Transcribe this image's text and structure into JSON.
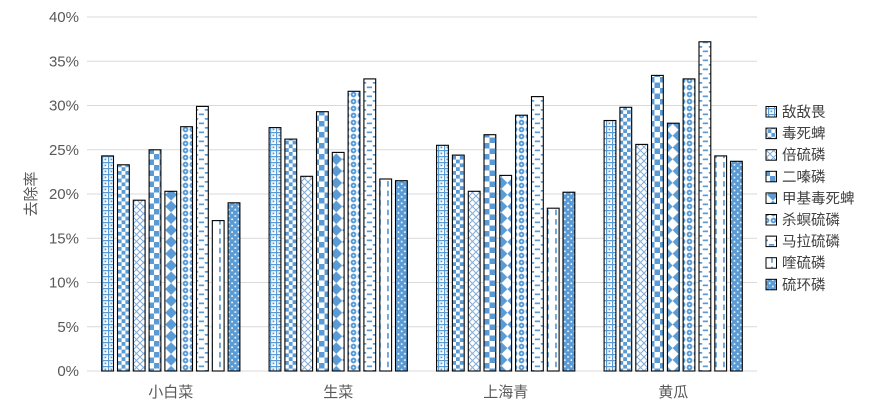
{
  "chart_data": {
    "type": "bar",
    "title": "",
    "xlabel": "",
    "ylabel": "去除率",
    "ylim": [
      0,
      40
    ],
    "ytick_step": 5,
    "yticks": [
      "0%",
      "5%",
      "10%",
      "15%",
      "20%",
      "25%",
      "30%",
      "35%",
      "40%"
    ],
    "grid": true,
    "legend_position": "right",
    "categories": [
      "小白菜",
      "生菜",
      "上海青",
      "黄瓜"
    ],
    "series": [
      {
        "name": "敌敌畏",
        "pattern": "grid-dot",
        "values": [
          24.3,
          27.5,
          25.5,
          28.3
        ]
      },
      {
        "name": "毒死蜱",
        "pattern": "checker-small",
        "values": [
          23.3,
          26.2,
          24.4,
          29.8
        ]
      },
      {
        "name": "倍硫磷",
        "pattern": "diag-lattice",
        "values": [
          19.3,
          22.0,
          20.3,
          25.6
        ]
      },
      {
        "name": "二嗪磷",
        "pattern": "checker-large",
        "values": [
          25.0,
          29.3,
          26.7,
          33.4
        ]
      },
      {
        "name": "甲基毒死蜱",
        "pattern": "diamond",
        "values": [
          20.3,
          24.7,
          22.1,
          28.0
        ]
      },
      {
        "name": "杀螟硫磷",
        "pattern": "sphere",
        "values": [
          27.6,
          31.6,
          28.9,
          33.0
        ]
      },
      {
        "name": "马拉硫磷",
        "pattern": "h-dash",
        "values": [
          29.9,
          33.0,
          31.0,
          37.2
        ]
      },
      {
        "name": "喹硫磷",
        "pattern": "v-dash",
        "values": [
          17.0,
          21.7,
          18.4,
          24.3
        ]
      },
      {
        "name": "硫环磷",
        "pattern": "solid-dot",
        "values": [
          19.0,
          21.5,
          20.2,
          23.7
        ]
      }
    ],
    "colors": {
      "bar_blue": "#5B9BD5",
      "bar_blue_light": "#85AFDC",
      "bar_stroke": "#000000",
      "gridline": "#D9D9D9",
      "axis_text": "#595959",
      "background": "#FFFFFF"
    }
  }
}
